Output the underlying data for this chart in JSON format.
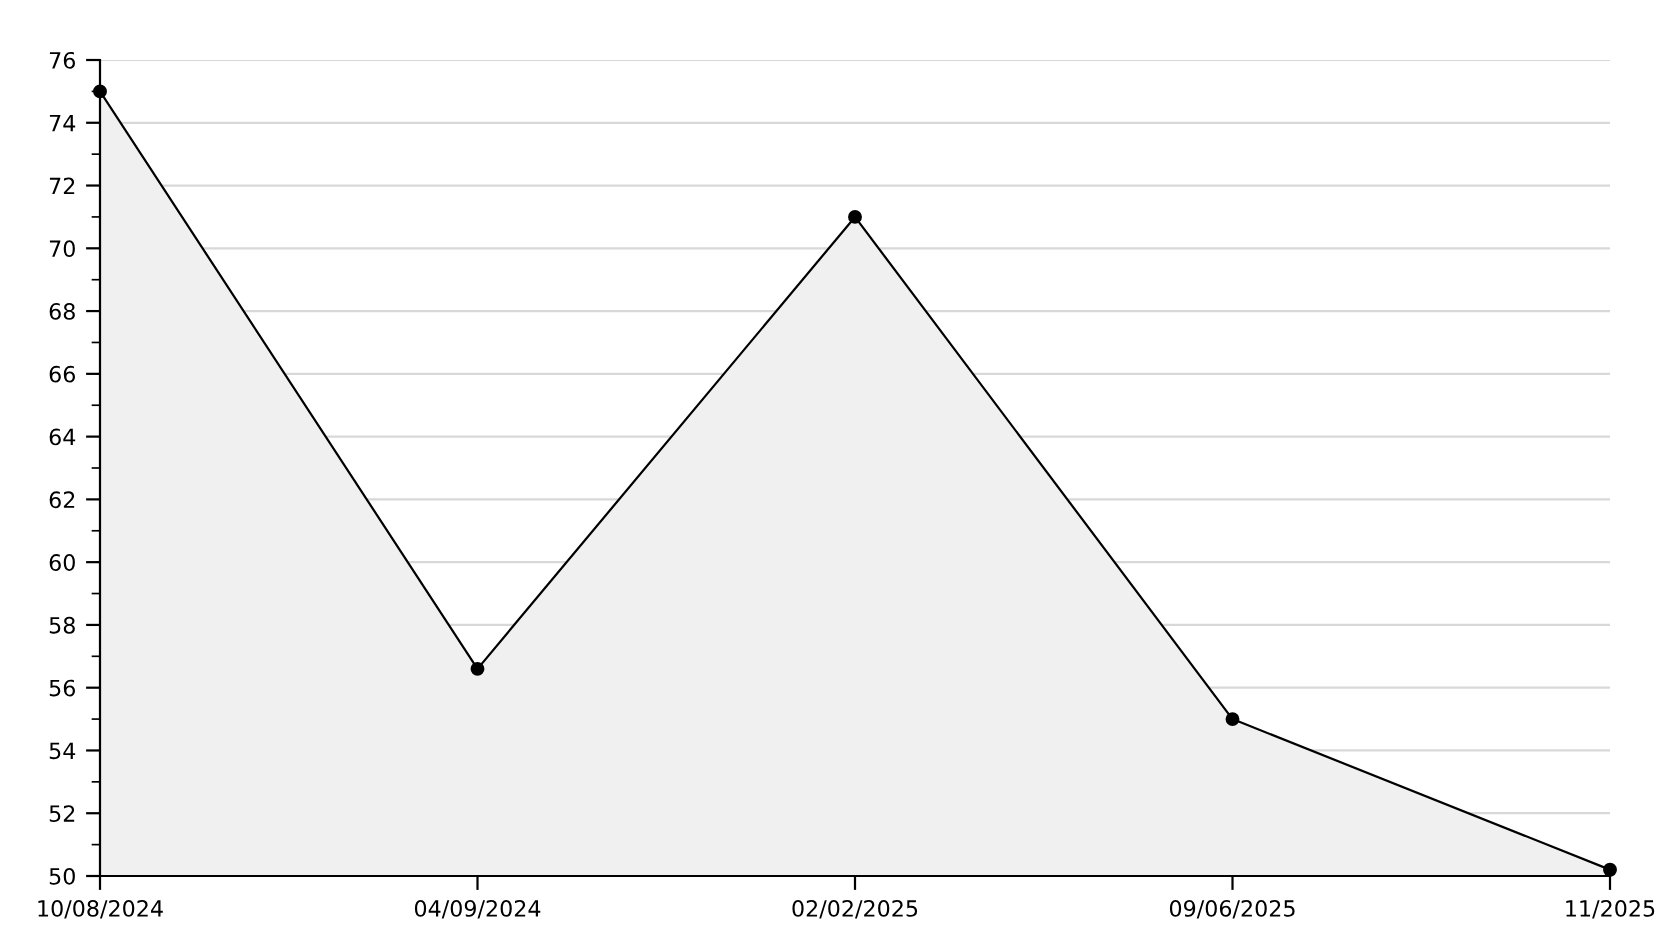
{
  "chart_data": {
    "type": "area",
    "categories": [
      "10/08/2024",
      "04/09/2024",
      "02/02/2025",
      "09/06/2025",
      "11/2025"
    ],
    "series": [
      {
        "color": "#000000",
        "values": [
          75,
          56.6,
          71,
          55,
          50.2
        ]
      }
    ],
    "ylim": [
      50,
      76
    ],
    "yticks": [
      50,
      52,
      54,
      56,
      58,
      60,
      62,
      64,
      66,
      68,
      70,
      72,
      74,
      76
    ],
    "grid": "y",
    "marker": "circle",
    "line_style": "solid"
  }
}
